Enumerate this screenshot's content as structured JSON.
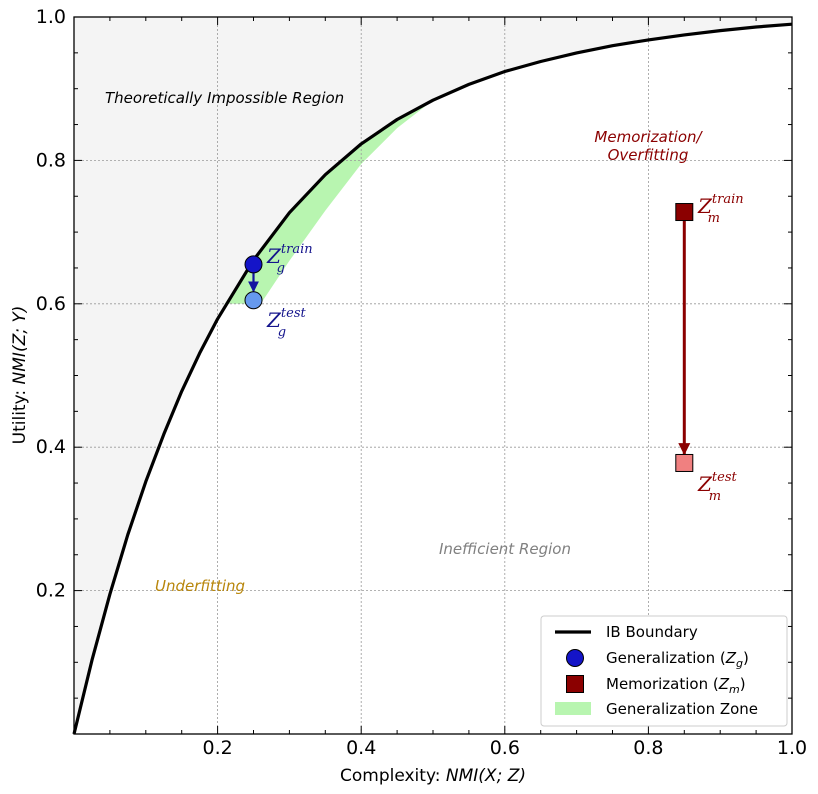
{
  "chart_data": {
    "type": "line",
    "xlabel_prefix": "Complexity: ",
    "xlabel_math": "NMI(X; Z)",
    "ylabel_prefix": "Utility: ",
    "ylabel_math": "NMI(Z; Y)",
    "xlim": [
      0,
      1.0
    ],
    "ylim": [
      0,
      1.0
    ],
    "xticks": [
      "0.2",
      "0.4",
      "0.6",
      "0.8",
      "1.0"
    ],
    "yticks": [
      "0.2",
      "0.4",
      "0.6",
      "0.8",
      "1.0"
    ],
    "xtick_values": [
      0.2,
      0.4,
      0.6,
      0.8,
      1.0
    ],
    "ytick_values": [
      0.2,
      0.4,
      0.6,
      0.8,
      1.0
    ],
    "grid": true,
    "boundary": {
      "name": "IB Boundary",
      "x": [
        0,
        0.025,
        0.05,
        0.075,
        0.1,
        0.125,
        0.15,
        0.175,
        0.2,
        0.25,
        0.3,
        0.35,
        0.4,
        0.45,
        0.5,
        0.55,
        0.6,
        0.65,
        0.7,
        0.75,
        0.8,
        0.85,
        0.9,
        0.95,
        1.0
      ],
      "y": [
        0,
        0.103,
        0.195,
        0.278,
        0.352,
        0.418,
        0.478,
        0.531,
        0.579,
        0.661,
        0.727,
        0.78,
        0.823,
        0.857,
        0.884,
        0.906,
        0.924,
        0.938,
        0.95,
        0.96,
        0.968,
        0.975,
        0.981,
        0.986,
        0.99
      ]
    },
    "generalization_zone": {
      "name": "Generalization Zone",
      "upper_x": [
        0.21,
        0.25,
        0.3,
        0.35,
        0.4,
        0.45,
        0.5
      ],
      "upper_y": [
        0.6,
        0.661,
        0.727,
        0.78,
        0.823,
        0.857,
        0.884
      ],
      "lower_x": [
        0.5,
        0.45,
        0.4,
        0.35,
        0.3,
        0.26
      ],
      "lower_y": [
        0.884,
        0.845,
        0.795,
        0.73,
        0.66,
        0.6
      ]
    },
    "points": [
      {
        "id": "g_train",
        "series": "Generalization (Zg)",
        "x": 0.25,
        "y": 0.655,
        "label_main": "Z",
        "label_sub": "g",
        "label_sup": "train"
      },
      {
        "id": "g_test",
        "series": "Generalization (Zg)",
        "x": 0.25,
        "y": 0.605,
        "label_main": "Z",
        "label_sub": "g",
        "label_sup": "test"
      },
      {
        "id": "m_train",
        "series": "Memorization (Zm)",
        "x": 0.85,
        "y": 0.728,
        "label_main": "Z",
        "label_sub": "m",
        "label_sup": "train"
      },
      {
        "id": "m_test",
        "series": "Memorization (Zm)",
        "x": 0.85,
        "y": 0.378,
        "label_main": "Z",
        "label_sub": "m",
        "label_sup": "test"
      }
    ],
    "annotations": {
      "impossible": "Theoretically Impossible Region",
      "memorization_line1": "Memorization/",
      "memorization_line2": "Overfitting",
      "inefficient": "Inefficient Region",
      "underfitting": "Underfitting"
    },
    "legend": {
      "position": "lower-right",
      "boundary": "IB Boundary",
      "gen_prefix": "Generalization (",
      "gen_main": "Z",
      "gen_sub": "g",
      "gen_suffix": ")",
      "mem_prefix": "Memorization (",
      "mem_main": "Z",
      "mem_sub": "m",
      "mem_suffix": ")",
      "zone": "Generalization Zone"
    },
    "colors": {
      "boundary": "#000000",
      "impossible_fill": "#f4f4f4",
      "zone_fill": "#b8f5b0",
      "gen_train": "#1414c8",
      "gen_test": "#6699ee",
      "gen_arrow": "#1414a0",
      "gen_text": "#14148c",
      "mem_train": "#8b0000",
      "mem_test": "#f08080",
      "mem_arrow": "#8b0000",
      "mem_text": "#8b0000",
      "underfit_text": "#b8860b",
      "inefficient_text": "#808080",
      "impossible_text": "#000000"
    }
  }
}
